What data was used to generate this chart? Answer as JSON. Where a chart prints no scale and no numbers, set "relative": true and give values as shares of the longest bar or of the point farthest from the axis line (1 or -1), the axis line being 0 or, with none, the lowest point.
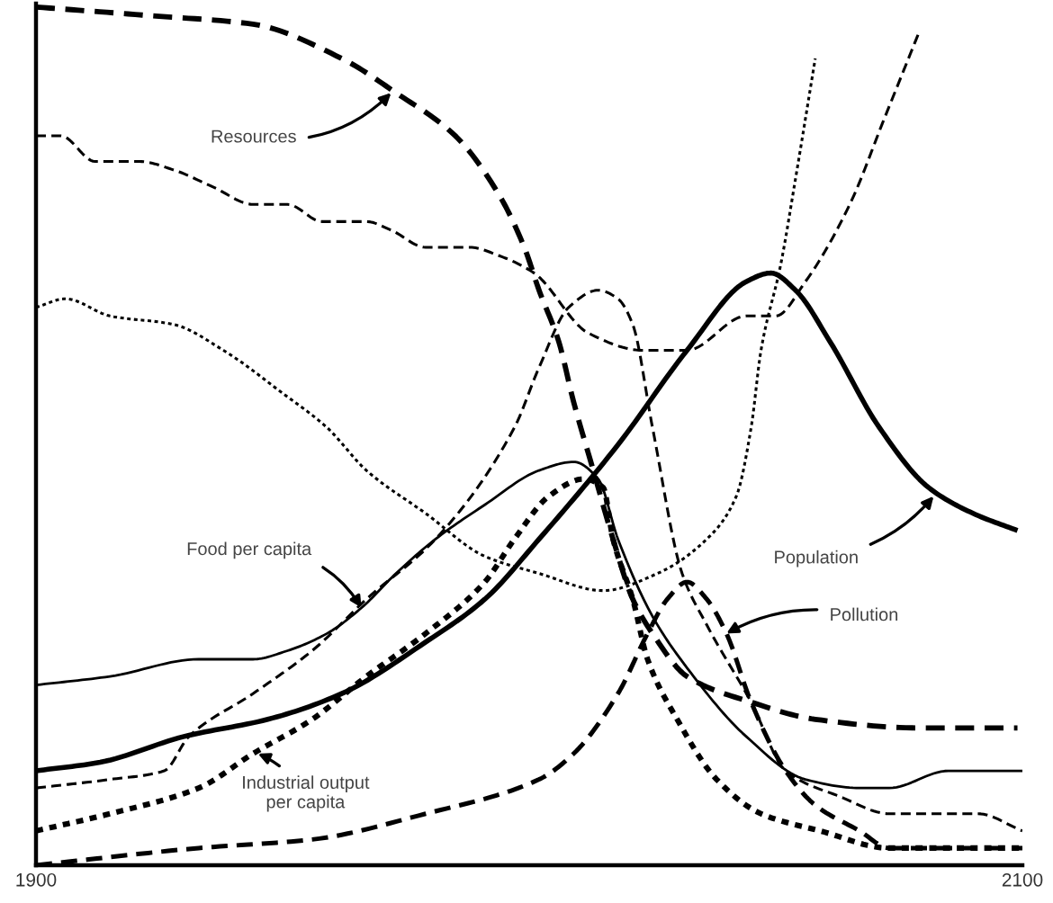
{
  "chart_data": {
    "type": "line",
    "relative": true,
    "xlim": [
      1900,
      2100
    ],
    "xticks": [
      1900,
      2100
    ],
    "series": [
      {
        "color": "#000000",
        "line_style": "dashed",
        "x": [
          1900,
          1923,
          1944,
          1962,
          1973,
          1985,
          1994,
          1999,
          2002,
          2006,
          2009,
          2013,
          2017,
          2021,
          2025,
          2032,
          2045,
          2058,
          2079,
          2099
        ],
        "values": [
          1.0,
          0.99,
          0.98,
          0.94,
          0.9,
          0.85,
          0.78,
          0.72,
          0.67,
          0.61,
          0.54,
          0.46,
          0.38,
          0.31,
          0.27,
          0.22,
          0.19,
          0.17,
          0.16,
          0.16
        ]
      },
      {
        "color": "#000000",
        "line_style": "solid",
        "x": [
          1900,
          1913,
          1930,
          1947,
          1962,
          1979,
          1991,
          2002,
          2018,
          2032,
          2044,
          2049,
          2054,
          2061,
          2071,
          2081,
          2090,
          2099
        ],
        "values": [
          0.11,
          0.12,
          0.15,
          0.17,
          0.2,
          0.26,
          0.31,
          0.38,
          0.49,
          0.6,
          0.68,
          0.69,
          0.67,
          0.61,
          0.51,
          0.44,
          0.41,
          0.39
        ]
      },
      {
        "color": "#000000",
        "line_style": "solid",
        "x": [
          1900,
          1915,
          1933,
          1944,
          1951,
          1959,
          1966,
          1973,
          1981,
          1991,
          2002,
          2009,
          2014,
          2018,
          2025,
          2032,
          2044,
          2056,
          2067,
          2073,
          2085,
          2100
        ],
        "values": [
          0.21,
          0.22,
          0.24,
          0.24,
          0.25,
          0.27,
          0.3,
          0.34,
          0.38,
          0.42,
          0.46,
          0.47,
          0.45,
          0.38,
          0.29,
          0.23,
          0.15,
          0.1,
          0.09,
          0.09,
          0.11,
          0.11
        ]
      },
      {
        "color": "#000000",
        "line_style": "dotted",
        "x": [
          1900,
          1915,
          1933,
          1944,
          1956,
          1967,
          1979,
          1991,
          1997,
          2004,
          2011,
          2015,
          2017,
          2021,
          2024,
          2030,
          2038,
          2047,
          2059,
          2073,
          2100
        ],
        "values": [
          0.04,
          0.06,
          0.09,
          0.13,
          0.17,
          0.22,
          0.27,
          0.33,
          0.38,
          0.43,
          0.45,
          0.44,
          0.38,
          0.31,
          0.24,
          0.17,
          0.1,
          0.06,
          0.04,
          0.02,
          0.02
        ]
      },
      {
        "color": "#000000",
        "line_style": "dashed",
        "x": [
          1900,
          1933,
          1956,
          1979,
          2002,
          2009,
          2018,
          2024,
          2028,
          2032,
          2036,
          2040,
          2045,
          2052,
          2058,
          2067,
          2073,
          2100
        ],
        "values": [
          0.0,
          0.02,
          0.03,
          0.06,
          0.1,
          0.13,
          0.2,
          0.27,
          0.31,
          0.33,
          0.31,
          0.27,
          0.19,
          0.11,
          0.07,
          0.04,
          0.02,
          0.02
        ]
      },
      {
        "color": "#000000",
        "line_style": "dashed",
        "x": [
          1900,
          1905,
          1912,
          1921,
          1928,
          1936,
          1944,
          1951,
          1958,
          1967,
          1972,
          1979,
          1988,
          1994,
          2001,
          2012,
          2023,
          2032,
          2044,
          2050,
          2056,
          2065,
          2072,
          2079
        ],
        "values": [
          0.85,
          0.85,
          0.82,
          0.82,
          0.81,
          0.79,
          0.77,
          0.77,
          0.75,
          0.75,
          0.74,
          0.72,
          0.72,
          0.71,
          0.69,
          0.62,
          0.6,
          0.6,
          0.64,
          0.64,
          0.68,
          0.77,
          0.87,
          0.97
        ]
      },
      {
        "color": "#000000",
        "line_style": "dotted",
        "x": [
          1900,
          1906,
          1915,
          1928,
          1938,
          1950,
          1959,
          1967,
          1979,
          1991,
          2002,
          2015,
          2026,
          2036,
          2042,
          2045,
          2047,
          2051,
          2054,
          2058
        ],
        "values": [
          0.65,
          0.66,
          0.64,
          0.63,
          0.6,
          0.55,
          0.51,
          0.46,
          0.41,
          0.36,
          0.34,
          0.32,
          0.34,
          0.38,
          0.43,
          0.51,
          0.6,
          0.7,
          0.8,
          0.94
        ]
      },
      {
        "color": "#000000",
        "line_style": "dashed",
        "x": [
          1900,
          1915,
          1926,
          1931,
          1944,
          1956,
          1967,
          1981,
          1997,
          2002,
          2008,
          2014,
          2018,
          2021,
          2025,
          2031,
          2036,
          2045,
          2052,
          2063,
          2073,
          2091,
          2100
        ],
        "values": [
          0.09,
          0.1,
          0.11,
          0.15,
          0.2,
          0.25,
          0.31,
          0.38,
          0.51,
          0.58,
          0.65,
          0.67,
          0.66,
          0.63,
          0.51,
          0.34,
          0.28,
          0.19,
          0.11,
          0.08,
          0.06,
          0.06,
          0.04
        ]
      }
    ],
    "annotations": [
      {
        "text": "Resources",
        "x": 1972,
        "y": 0.9
      },
      {
        "text": "Food per capita",
        "x": 1966,
        "y": 0.3
      },
      {
        "text": "Industrial output\nper capita",
        "x": 1945,
        "y": 0.13
      },
      {
        "text": "Population",
        "x": 2082,
        "y": 0.43
      },
      {
        "text": "Pollution",
        "x": 2040,
        "y": 0.27
      }
    ]
  }
}
